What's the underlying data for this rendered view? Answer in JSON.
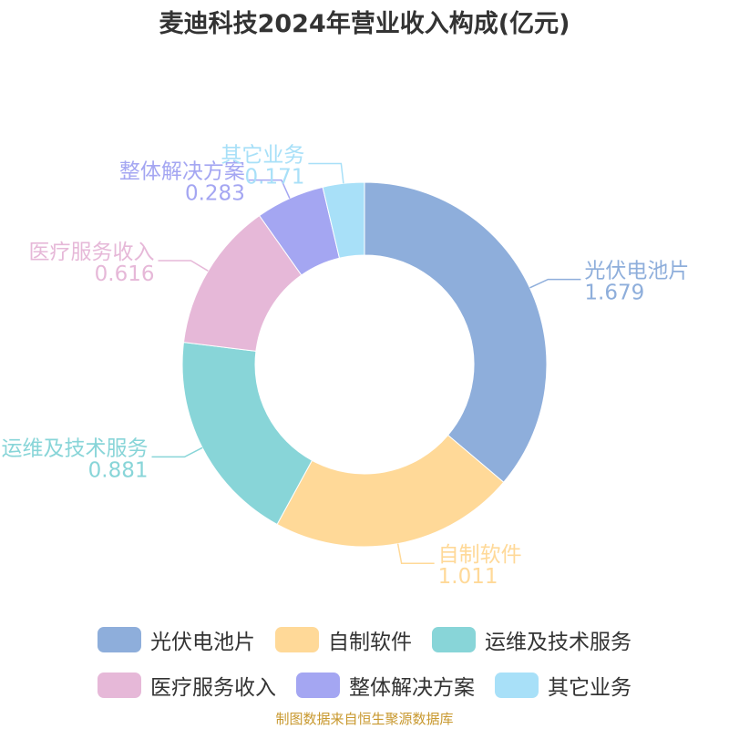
{
  "chart_data": {
    "type": "pie",
    "title": "麦迪科技2024年营业收入构成(亿元)",
    "slices": [
      {
        "label": "光伏电池片",
        "value": 1.679,
        "color": "#8eaedb"
      },
      {
        "label": "自制软件",
        "value": 1.011,
        "color": "#ffd998"
      },
      {
        "label": "运维及技术服务",
        "value": 0.881,
        "color": "#88d5d8"
      },
      {
        "label": "医疗服务收入",
        "value": 0.616,
        "color": "#e6b8d8"
      },
      {
        "label": "整体解决方案",
        "value": 0.283,
        "color": "#a4a6f2"
      },
      {
        "label": "其它业务",
        "value": 0.171,
        "color": "#a8e0f8"
      }
    ],
    "legend_position": "bottom",
    "source": "制图数据来自恒生聚源数据库"
  }
}
